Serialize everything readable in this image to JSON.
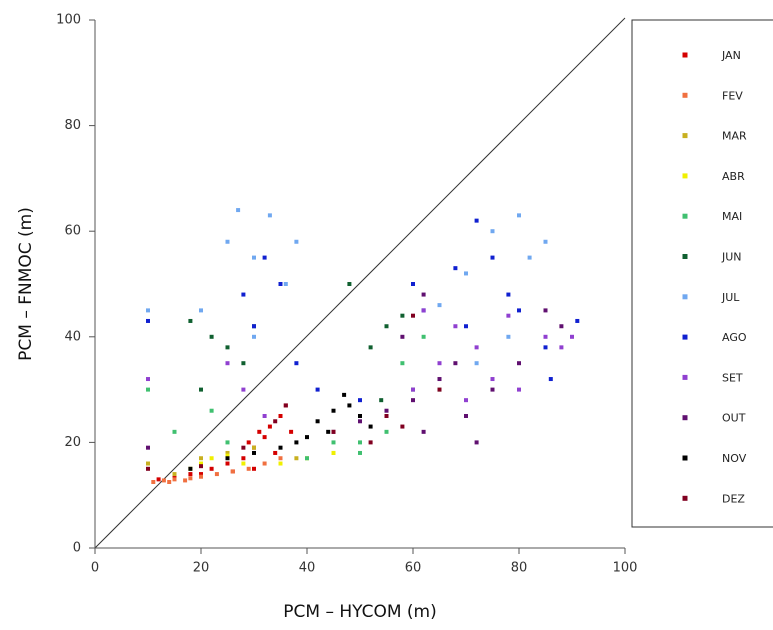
{
  "chart_data": {
    "type": "scatter",
    "x_label": "PCM – HYCOM (m)",
    "y_label": "PCM – FNMOC (m)",
    "xlim": [
      0,
      100
    ],
    "ylim": [
      0,
      100
    ],
    "xticks": [
      0,
      20,
      40,
      60,
      80,
      100
    ],
    "yticks": [
      0,
      20,
      40,
      60,
      80,
      100
    ],
    "legend": "right",
    "series": [
      {
        "name": "JAN",
        "color": "#d40000",
        "x": [
          12,
          15,
          18,
          22,
          25,
          28,
          30,
          32,
          33,
          35,
          36,
          30,
          34,
          26,
          20,
          31,
          29,
          37
        ],
        "values": [
          13,
          13.5,
          14,
          15,
          16,
          17,
          19,
          21,
          23,
          25,
          27,
          15,
          18,
          14.5,
          14,
          22,
          20,
          22
        ]
      },
      {
        "name": "FEV",
        "color": "#f07040",
        "x": [
          11,
          13,
          15,
          18,
          20,
          23,
          26,
          29,
          32,
          35,
          17,
          14
        ],
        "values": [
          12.5,
          12.8,
          13,
          13.2,
          13.5,
          14,
          14.5,
          15,
          16,
          17,
          12.8,
          12.5
        ]
      },
      {
        "name": "MAR",
        "color": "#c8b020",
        "x": [
          10,
          20,
          25,
          38,
          45,
          30,
          15
        ],
        "values": [
          16,
          17,
          18,
          17,
          18,
          19,
          14
        ]
      },
      {
        "name": "ABR",
        "color": "#f0f000",
        "x": [
          18,
          22,
          25,
          20,
          35,
          40,
          45,
          28
        ],
        "values": [
          15,
          17,
          17.5,
          16,
          16,
          17,
          18,
          16
        ]
      },
      {
        "name": "MAI",
        "color": "#40c070",
        "x": [
          10,
          15,
          22,
          25,
          40,
          50,
          55,
          58,
          62,
          65,
          50,
          45
        ],
        "values": [
          30,
          22,
          26,
          20,
          17,
          20,
          22,
          35,
          40,
          30,
          18,
          20
        ]
      },
      {
        "name": "JUN",
        "color": "#106030",
        "x": [
          18,
          22,
          25,
          28,
          30,
          52,
          55,
          58,
          60,
          20,
          48,
          54
        ],
        "values": [
          43,
          40,
          38,
          35,
          42,
          38,
          42,
          44,
          30,
          30,
          50,
          28
        ]
      },
      {
        "name": "JUL",
        "color": "#70a8f0",
        "x": [
          10,
          20,
          25,
          27,
          30,
          33,
          36,
          30,
          38,
          65,
          70,
          75,
          80,
          85,
          78,
          72,
          82
        ],
        "values": [
          45,
          45,
          58,
          64,
          55,
          63,
          50,
          40,
          58,
          46,
          52,
          60,
          63,
          58,
          40,
          35,
          55
        ]
      },
      {
        "name": "AGO",
        "color": "#1020d0",
        "x": [
          10,
          28,
          32,
          35,
          30,
          38,
          42,
          50,
          60,
          62,
          68,
          72,
          75,
          78,
          80,
          85,
          91,
          70,
          86
        ],
        "values": [
          43,
          48,
          55,
          50,
          42,
          35,
          30,
          28,
          50,
          45,
          53,
          62,
          55,
          48,
          45,
          38,
          43,
          42,
          32
        ]
      },
      {
        "name": "SET",
        "color": "#9040d0",
        "x": [
          10,
          25,
          28,
          32,
          55,
          60,
          65,
          68,
          72,
          75,
          80,
          85,
          88,
          90,
          62,
          78,
          70
        ],
        "values": [
          32,
          35,
          30,
          25,
          25,
          30,
          35,
          42,
          38,
          32,
          30,
          40,
          38,
          40,
          45,
          44,
          28
        ]
      },
      {
        "name": "OUT",
        "color": "#601070",
        "x": [
          10,
          45,
          50,
          55,
          60,
          62,
          65,
          68,
          70,
          75,
          80,
          85,
          88,
          58,
          62,
          72
        ],
        "values": [
          19,
          22,
          24,
          26,
          28,
          22,
          32,
          35,
          25,
          30,
          35,
          45,
          42,
          40,
          48,
          20
        ]
      },
      {
        "name": "NOV",
        "color": "#000000",
        "x": [
          18,
          25,
          30,
          35,
          40,
          42,
          45,
          48,
          50,
          52,
          44,
          38,
          47
        ],
        "values": [
          15,
          17,
          18,
          19,
          21,
          24,
          26,
          27,
          25,
          23,
          22,
          20,
          29
        ]
      },
      {
        "name": "DEZ",
        "color": "#800020",
        "x": [
          10,
          20,
          28,
          34,
          36,
          45,
          55,
          52,
          65,
          60,
          58
        ],
        "values": [
          15,
          15.5,
          19,
          24,
          27,
          22,
          25,
          20,
          30,
          44,
          23
        ]
      }
    ]
  }
}
